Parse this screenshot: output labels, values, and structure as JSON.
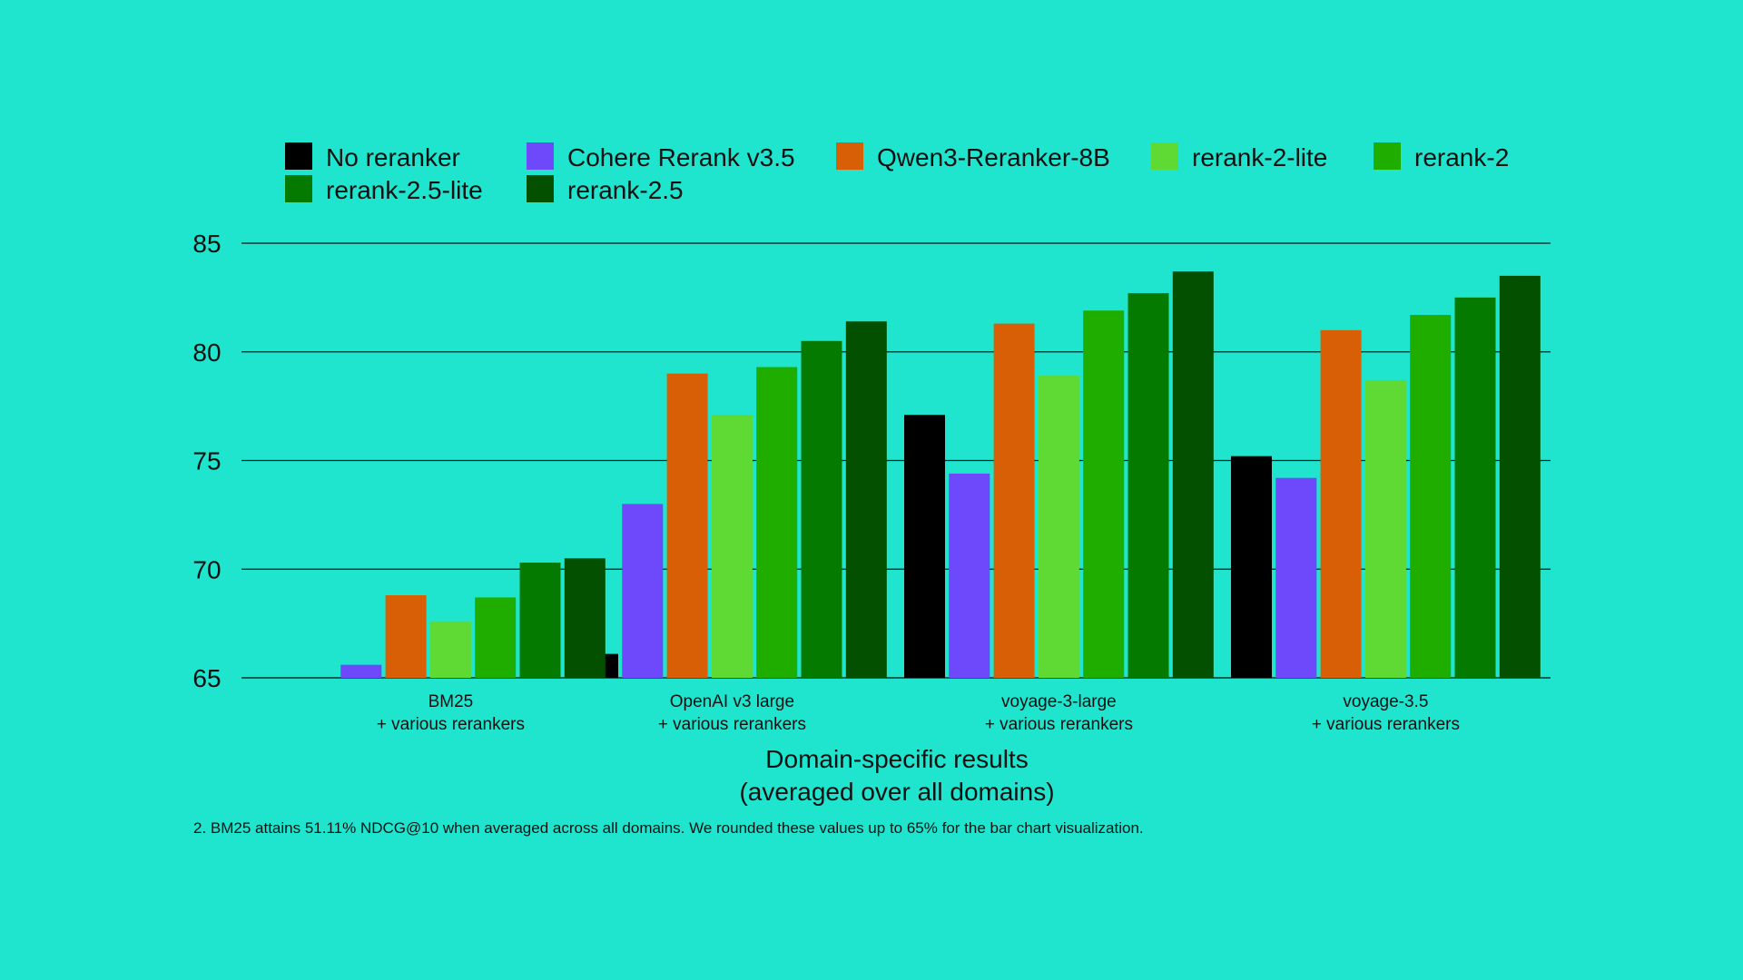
{
  "chart_data": {
    "type": "bar",
    "categories": [
      [
        "BM25",
        "+ various rerankers"
      ],
      [
        "OpenAI v3 large",
        "+ various rerankers"
      ],
      [
        "voyage-3-large",
        "+ various rerankers"
      ],
      [
        "voyage-3.5",
        "+ various rerankers"
      ]
    ],
    "series": [
      {
        "name": "No reranker",
        "color": "#000000",
        "values": [
          65,
          66.1,
          77.1,
          75.2
        ]
      },
      {
        "name": "Cohere Rerank v3.5",
        "color": "#6e48fb",
        "values": [
          65.6,
          73.0,
          74.4,
          74.2
        ]
      },
      {
        "name": "Qwen3-Reranker-8B",
        "color": "#d95f06",
        "values": [
          68.8,
          79.0,
          81.3,
          81.0
        ]
      },
      {
        "name": "rerank-2-lite",
        "color": "#5fd934",
        "values": [
          67.6,
          77.1,
          78.9,
          78.7
        ]
      },
      {
        "name": "rerank-2",
        "color": "#1fae00",
        "values": [
          68.7,
          79.3,
          81.9,
          81.7
        ]
      },
      {
        "name": "rerank-2.5-lite",
        "color": "#047a00",
        "values": [
          70.3,
          80.5,
          82.7,
          82.5
        ]
      },
      {
        "name": "rerank-2.5",
        "color": "#025000",
        "values": [
          70.5,
          81.4,
          83.7,
          83.5
        ]
      }
    ],
    "y_ticks": [
      85,
      80,
      75,
      70,
      65
    ],
    "ylim": [
      65,
      85
    ],
    "xlabel": [
      "Domain-specific results",
      "(averaged over all domains)"
    ],
    "ylabel": "",
    "grid": true,
    "legend_position": "top",
    "footnote": "2. BM25 attains 51.11% NDCG@10 when averaged across all domains. We rounded these values up to 65% for the bar chart visualization."
  },
  "colors": {
    "background": "#1fe5cf",
    "gridline": "#111111"
  }
}
